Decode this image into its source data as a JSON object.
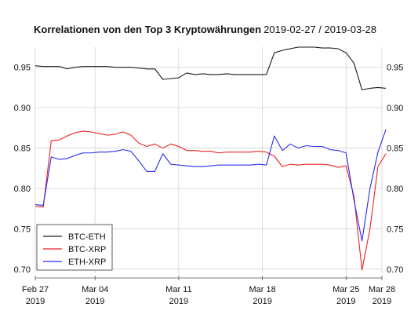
{
  "chart_data": {
    "type": "line",
    "title": "Korrelationen von den Top 3 Kryptowährungen",
    "subtitle": "2019-02-27 / 2019-03-28",
    "xlabel": "",
    "ylabel": "",
    "x_range": [
      "2019-02-27",
      "2019-03-28"
    ],
    "ylim": [
      0.695,
      0.975
    ],
    "yticks": [
      0.7,
      0.75,
      0.8,
      0.85,
      0.9,
      0.95
    ],
    "ytick_labels": [
      "0.70",
      "0.75",
      "0.80",
      "0.85",
      "0.90",
      "0.95"
    ],
    "xticks": [
      {
        "date": "2019-02-27",
        "line1": "Feb 27",
        "line2": "2019"
      },
      {
        "date": "2019-03-04",
        "line1": "Mar 04",
        "line2": "2019"
      },
      {
        "date": "2019-03-11",
        "line1": "Mar 11",
        "line2": "2019"
      },
      {
        "date": "2019-03-18",
        "line1": "Mar 18",
        "line2": "2019"
      },
      {
        "date": "2019-03-25",
        "line1": "Mar 25",
        "line2": "2019"
      },
      {
        "date": "2019-03-28",
        "line1": "Mar 28",
        "line2": "2019"
      }
    ],
    "grid": true,
    "legend_position": "bottom-left",
    "x": [
      "2019-02-27 00:00",
      "2019-02-27 16:00",
      "2019-02-28 08:00",
      "2019-03-01 00:00",
      "2019-03-01 16:00",
      "2019-03-02 08:00",
      "2019-03-03 00:00",
      "2019-03-03 16:00",
      "2019-03-04 08:00",
      "2019-03-05 00:00",
      "2019-03-05 16:00",
      "2019-03-06 08:00",
      "2019-03-07 00:00",
      "2019-03-07 16:00",
      "2019-03-08 08:00",
      "2019-03-09 00:00",
      "2019-03-09 16:00",
      "2019-03-10 08:00",
      "2019-03-11 00:00",
      "2019-03-11 16:00",
      "2019-03-12 08:00",
      "2019-03-13 00:00",
      "2019-03-13 16:00",
      "2019-03-14 08:00",
      "2019-03-15 00:00",
      "2019-03-15 16:00",
      "2019-03-16 08:00",
      "2019-03-17 00:00",
      "2019-03-17 16:00",
      "2019-03-18 08:00",
      "2019-03-19 00:00",
      "2019-03-19 16:00",
      "2019-03-20 08:00",
      "2019-03-21 00:00",
      "2019-03-21 16:00",
      "2019-03-22 08:00",
      "2019-03-23 00:00",
      "2019-03-23 16:00",
      "2019-03-24 08:00",
      "2019-03-25 00:00",
      "2019-03-25 16:00",
      "2019-03-26 08:00",
      "2019-03-27 00:00",
      "2019-03-27 16:00",
      "2019-03-28 08:00"
    ],
    "series": [
      {
        "name": "BTC-ETH",
        "color": "#1a1a1a",
        "values": [
          0.952,
          0.951,
          0.951,
          0.951,
          0.948,
          0.95,
          0.951,
          0.951,
          0.951,
          0.951,
          0.95,
          0.95,
          0.95,
          0.949,
          0.948,
          0.948,
          0.935,
          0.936,
          0.937,
          0.943,
          0.941,
          0.942,
          0.941,
          0.941,
          0.942,
          0.941,
          0.941,
          0.941,
          0.941,
          0.941,
          0.968,
          0.971,
          0.973,
          0.975,
          0.975,
          0.975,
          0.974,
          0.974,
          0.973,
          0.968,
          0.955,
          0.922,
          0.924,
          0.925,
          0.924
        ]
      },
      {
        "name": "BTC-XRP",
        "color": "#ee2020",
        "values": [
          0.778,
          0.777,
          0.859,
          0.86,
          0.865,
          0.869,
          0.871,
          0.87,
          0.868,
          0.866,
          0.867,
          0.87,
          0.866,
          0.856,
          0.852,
          0.855,
          0.85,
          0.855,
          0.852,
          0.847,
          0.847,
          0.846,
          0.846,
          0.844,
          0.845,
          0.845,
          0.845,
          0.845,
          0.846,
          0.845,
          0.84,
          0.827,
          0.83,
          0.829,
          0.83,
          0.83,
          0.83,
          0.829,
          0.826,
          0.828,
          0.79,
          0.699,
          0.75,
          0.827,
          0.843
        ]
      },
      {
        "name": "ETH-XRP",
        "color": "#2b2bf0",
        "values": [
          0.78,
          0.779,
          0.839,
          0.836,
          0.837,
          0.841,
          0.844,
          0.844,
          0.845,
          0.845,
          0.846,
          0.848,
          0.846,
          0.834,
          0.821,
          0.821,
          0.843,
          0.83,
          0.829,
          0.828,
          0.827,
          0.827,
          0.828,
          0.829,
          0.829,
          0.829,
          0.829,
          0.829,
          0.83,
          0.829,
          0.865,
          0.847,
          0.855,
          0.85,
          0.853,
          0.852,
          0.852,
          0.848,
          0.847,
          0.844,
          0.785,
          0.735,
          0.8,
          0.845,
          0.873
        ]
      }
    ]
  }
}
